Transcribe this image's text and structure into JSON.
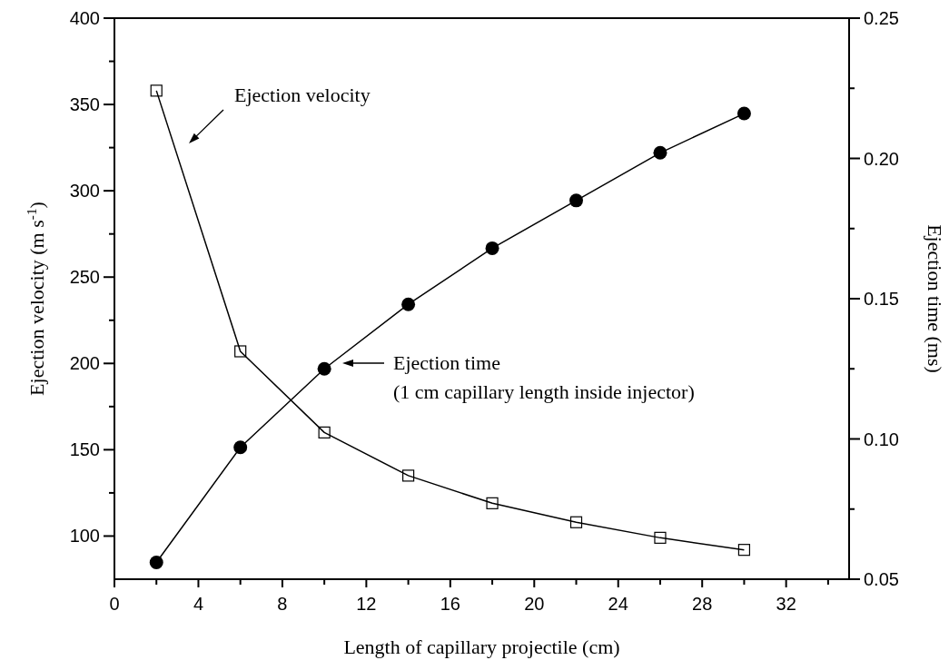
{
  "chart_data": {
    "type": "line",
    "xlabel": "Length of capillary projectile (cm)",
    "ylabel": "Ejection velocity (m s$^{-1}$)",
    "y2label": "Ejection time (ms)",
    "x": [
      2,
      6,
      10,
      14,
      18,
      22,
      26,
      30
    ],
    "series": [
      {
        "values": [
          358,
          207,
          160,
          135,
          119,
          108,
          99,
          92
        ],
        "color": "#000000",
        "marker": "square"
      },
      {
        "values": [
          0.056,
          0.097,
          0.125,
          0.148,
          0.168,
          0.185,
          0.202,
          0.216
        ],
        "color": "#000000",
        "marker": "circle",
        "axis": "y2"
      }
    ],
    "xlim": [
      0,
      35
    ],
    "xticks": [
      0,
      {
        "value": 2,
        "label": null
      },
      4,
      {
        "value": 6,
        "label": null
      },
      8,
      {
        "value": 10,
        "label": null
      },
      12,
      {
        "value": 14,
        "label": null
      },
      16,
      {
        "value": 18,
        "label": null
      },
      20,
      {
        "value": 22,
        "label": null
      },
      24,
      {
        "value": 26,
        "label": null
      },
      28,
      {
        "value": 30,
        "label": null
      },
      32,
      {
        "value": 34,
        "label": null
      }
    ],
    "ylim": [
      75,
      400
    ],
    "yticks": [
      100,
      {
        "value": 125,
        "label": null
      },
      150,
      {
        "value": 175,
        "label": null
      },
      200,
      {
        "value": 225,
        "label": null
      },
      250,
      {
        "value": 275,
        "label": null
      },
      300,
      {
        "value": 325,
        "label": null
      },
      350,
      {
        "value": 375,
        "label": null
      },
      400
    ],
    "y2lim": [
      0.05,
      0.25
    ],
    "y2ticks": [
      {
        "value": 0.05,
        "label": "0.05"
      },
      {
        "value": 0.075,
        "label": null
      },
      {
        "value": 0.1,
        "label": "0.10"
      },
      {
        "value": 0.125,
        "label": null
      },
      {
        "value": 0.15,
        "label": "0.15"
      },
      {
        "value": 0.175,
        "label": null
      },
      {
        "value": 0.2,
        "label": "0.20"
      },
      {
        "value": 0.225,
        "label": null
      },
      0.25
    ],
    "annotations": [
      "Ejection velocity",
      "Ejection time\n(1 cm capillary length inside injector)"
    ],
    "grid": false,
    "line_style": "solid"
  }
}
